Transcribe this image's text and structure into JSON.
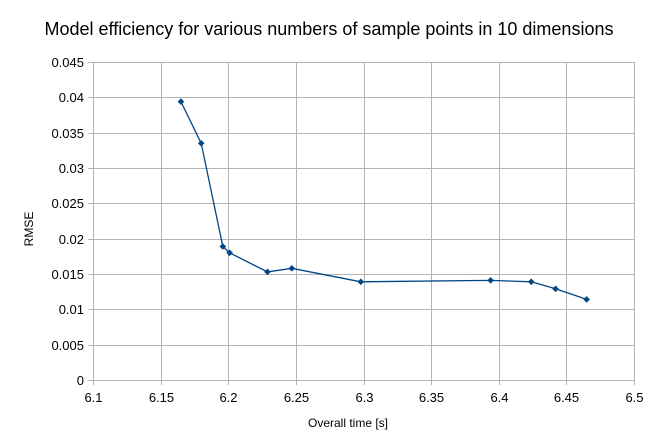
{
  "chart_data": {
    "type": "line",
    "title": "Model efficiency for various numbers of sample points in 10 dimensions",
    "xlabel": "Overall time [s]",
    "ylabel": "RMSE",
    "xlim": [
      6.1,
      6.5
    ],
    "ylim": [
      0,
      0.045
    ],
    "x_ticks": [
      "6.1",
      "6.15",
      "6.2",
      "6.25",
      "6.3",
      "6.35",
      "6.4",
      "6.45",
      "6.5"
    ],
    "y_ticks": [
      "0",
      "0.005",
      "0.01",
      "0.015",
      "0.02",
      "0.025",
      "0.03",
      "0.035",
      "0.04",
      "0.045"
    ],
    "grid": true,
    "legend": "none",
    "colors": {
      "series": "#004586",
      "grid": "#b3b3b3",
      "axis": "#b3b3b3"
    },
    "series": [
      {
        "x": [
          6.165,
          6.18,
          6.196,
          6.201,
          6.229,
          6.247,
          6.298,
          6.394,
          6.424,
          6.442,
          6.465
        ],
        "y": [
          0.0394,
          0.0335,
          0.0189,
          0.018,
          0.0153,
          0.0158,
          0.0139,
          0.0141,
          0.0139,
          0.0129,
          0.0114
        ]
      }
    ]
  }
}
